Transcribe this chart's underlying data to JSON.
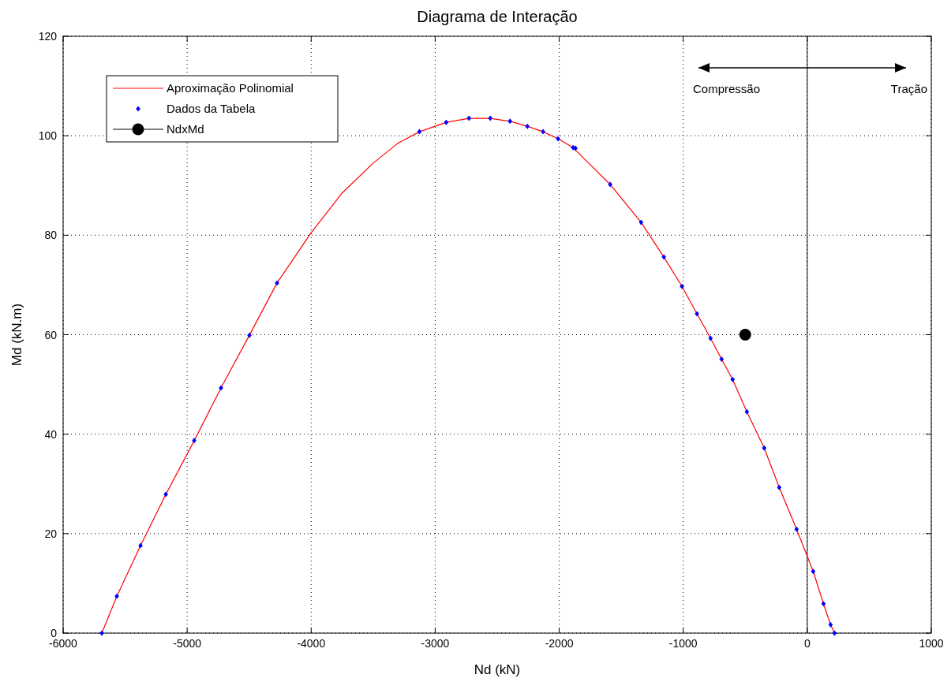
{
  "chart_data": {
    "type": "line",
    "title": "Diagrama de Interação",
    "xlabel": "Nd (kN)",
    "ylabel": "Md (kN.m)",
    "xlim": [
      -6000,
      1000
    ],
    "ylim": [
      0,
      120
    ],
    "xticks": [
      -6000,
      -5000,
      -4000,
      -3000,
      -2000,
      -1000,
      0,
      1000
    ],
    "yticks": [
      0,
      20,
      40,
      60,
      80,
      100,
      120
    ],
    "grid": true,
    "legend": "top left",
    "line_style": "solid",
    "ref_lines": [
      {
        "axis": "x",
        "value": 0,
        "color": "#000000"
      }
    ],
    "annotations": [
      "Compressão",
      "Tração"
    ],
    "series": [
      {
        "name": "Aproximação Polinomial",
        "color": "#ff0000",
        "marker": "none",
        "x": [
          -5688,
          -5567,
          -5376,
          -5172,
          -4943,
          -4727,
          -4498,
          -4275,
          -4000,
          -3750,
          -3500,
          -3300,
          -3127,
          -2911,
          -2728,
          -2556,
          -2397,
          -2257,
          -2130,
          -2009,
          -1888,
          -1589,
          -1340,
          -1156,
          -1010,
          -889,
          -780,
          -691,
          -602,
          -487,
          -347,
          -226,
          -86,
          48,
          131,
          188,
          220
        ],
        "values": [
          0,
          7.4,
          17.6,
          27.9,
          38.7,
          49.3,
          59.9,
          70.4,
          80.5,
          88.5,
          94.5,
          98.5,
          100.8,
          102.7,
          103.5,
          103.5,
          102.9,
          101.9,
          100.8,
          99.4,
          97.6,
          90.2,
          82.6,
          75.6,
          69.7,
          64.2,
          59.3,
          55.1,
          51.0,
          44.5,
          37.2,
          29.3,
          20.9,
          12.4,
          5.9,
          1.7,
          0
        ]
      },
      {
        "name": "Dados da Tabela",
        "type": "scatter",
        "color": "#0000ff",
        "marker": "diamond",
        "x": [
          -5688,
          -5567,
          -5376,
          -5172,
          -4943,
          -4727,
          -4498,
          -4275,
          -3127,
          -2911,
          -2728,
          -2556,
          -2397,
          -2257,
          -2130,
          -2009,
          -1888,
          -1869,
          -1589,
          -1340,
          -1156,
          -1010,
          -889,
          -780,
          -691,
          -602,
          -487,
          -347,
          -226,
          -86,
          48,
          131,
          188,
          220
        ],
        "values": [
          0,
          7.4,
          17.6,
          27.9,
          38.7,
          49.3,
          59.9,
          70.4,
          100.8,
          102.7,
          103.5,
          103.5,
          102.9,
          101.9,
          100.8,
          99.4,
          97.6,
          97.5,
          90.2,
          82.6,
          75.6,
          69.7,
          64.2,
          59.3,
          55.1,
          51.0,
          44.5,
          37.2,
          29.3,
          20.9,
          12.4,
          5.9,
          1.7,
          0
        ]
      },
      {
        "name": "NdxMd",
        "type": "scatter",
        "color": "#000000",
        "marker": "circle",
        "x": [
          -500
        ],
        "values": [
          60
        ]
      }
    ]
  }
}
